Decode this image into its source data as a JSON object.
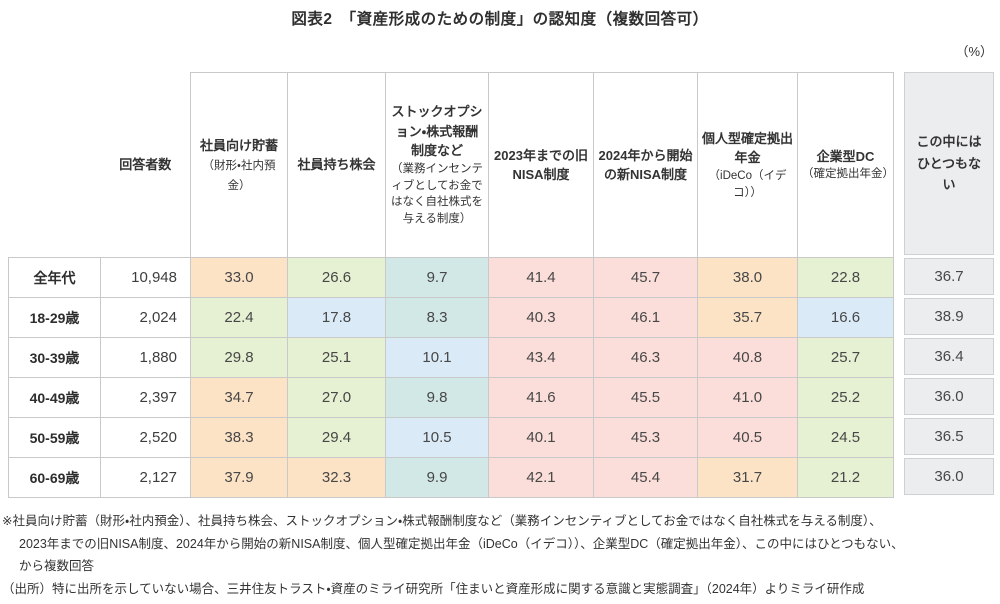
{
  "title": "図表2　「資産形成のための制度」の認知度（複数回答可）",
  "unit_label": "（%）",
  "table": {
    "respondents_header": "回答者数",
    "columns": [
      {
        "label": "社員向け貯蓄",
        "note": "（財形・社内預金）",
        "note_inline": true
      },
      {
        "label": "社員持ち株会",
        "note": ""
      },
      {
        "label": "ストックオプション・株式報酬制度など",
        "note": "（業務インセンティブとしてお金ではなく自社株式を与える制度）",
        "note_inline": false
      },
      {
        "label": "2023年までの旧NISA制度",
        "note": ""
      },
      {
        "label": "2024年から開始の新NISA制度",
        "note": ""
      },
      {
        "label": "個人型確定拠出年金",
        "note": "（iDeCo（イデコ））",
        "note_inline": false
      },
      {
        "label": "企業型DC",
        "note": "（確定拠出年金）",
        "note_inline": false
      }
    ],
    "none_column_header": "この中にはひとつもない",
    "rows": [
      {
        "label": "全年代",
        "respondents": "10,948",
        "values": [
          33.0,
          26.6,
          9.7,
          41.4,
          45.7,
          38.0,
          22.8
        ],
        "none": 36.7
      },
      {
        "label": "18-29歳",
        "respondents": "2,024",
        "values": [
          22.4,
          17.8,
          8.3,
          40.3,
          46.1,
          35.7,
          16.6
        ],
        "none": 38.9
      },
      {
        "label": "30-39歳",
        "respondents": "1,880",
        "values": [
          29.8,
          25.1,
          10.1,
          43.4,
          46.3,
          40.8,
          25.7
        ],
        "none": 36.4
      },
      {
        "label": "40-49歳",
        "respondents": "2,397",
        "values": [
          34.7,
          27.0,
          9.8,
          41.6,
          45.5,
          41.0,
          25.2
        ],
        "none": 36.0
      },
      {
        "label": "50-59歳",
        "respondents": "2,520",
        "values": [
          38.3,
          29.4,
          10.5,
          40.1,
          45.3,
          40.5,
          24.5
        ],
        "none": 36.5
      },
      {
        "label": "60-69歳",
        "respondents": "2,127",
        "values": [
          37.9,
          32.3,
          9.9,
          42.1,
          45.4,
          31.7,
          21.2
        ],
        "none": 36.0
      }
    ]
  },
  "heatmap": {
    "bins": [
      {
        "max": 10,
        "color": "#d2e8e6"
      },
      {
        "max": 20,
        "color": "#daeaf7"
      },
      {
        "max": 30,
        "color": "#e6f0d2"
      },
      {
        "max": 40,
        "color": "#fce3c6"
      },
      {
        "max": 100,
        "color": "#fbdeda"
      }
    ],
    "none_color": "#ecedef",
    "border_color": "#c9c9c9"
  },
  "notes": [
    "※社員向け貯蓄（財形・社内預金）、社員持ち株会、ストックオプション・株式報酬制度など（業務インセンティブとしてお金ではなく自社株式を与える制度）、",
    "2023年までの旧NISA制度、2024年から開始の新NISA制度、個人型確定拠出年金（iDeCo（イデコ））、企業型DC（確定拠出年金）、この中にはひとつもない、",
    "から複数回答",
    "（出所）特に出所を示していない場合、三井住友トラスト・資産のミライ研究所「住まいと資産形成に関する意識と実態調査」（2024年）よりミライ研作成"
  ],
  "chart_data": {
    "type": "table",
    "title": "図表2　「資産形成のための制度」の認知度（複数回答可）",
    "unit": "%",
    "columns": [
      "回答者数",
      "社員向け貯蓄（財形・社内預金）",
      "社員持ち株会",
      "ストックオプション・株式報酬制度など（業務インセンティブとしてお金ではなく自社株式を与える制度）",
      "2023年までの旧NISA制度",
      "2024年から開始の新NISA制度",
      "個人型確定拠出年金（iDeCo（イデコ））",
      "企業型DC（確定拠出年金）",
      "この中にはひとつもない"
    ],
    "rows": [
      {
        "category": "全年代",
        "respondents": 10948,
        "values": [
          33.0,
          26.6,
          9.7,
          41.4,
          45.7,
          38.0,
          22.8,
          36.7
        ]
      },
      {
        "category": "18-29歳",
        "respondents": 2024,
        "values": [
          22.4,
          17.8,
          8.3,
          40.3,
          46.1,
          35.7,
          16.6,
          38.9
        ]
      },
      {
        "category": "30-39歳",
        "respondents": 1880,
        "values": [
          29.8,
          25.1,
          10.1,
          43.4,
          46.3,
          40.8,
          25.7,
          36.4
        ]
      },
      {
        "category": "40-49歳",
        "respondents": 2397,
        "values": [
          34.7,
          27.0,
          9.8,
          41.6,
          45.5,
          41.0,
          25.2,
          36.0
        ]
      },
      {
        "category": "50-59歳",
        "respondents": 2520,
        "values": [
          38.3,
          29.4,
          10.5,
          40.1,
          45.3,
          40.5,
          24.5,
          36.5
        ]
      },
      {
        "category": "60-69歳",
        "respondents": 2127,
        "values": [
          37.9,
          32.3,
          9.9,
          42.1,
          45.4,
          31.7,
          21.2,
          36.0
        ]
      }
    ],
    "legend_hint": "cell fill encodes value bin: <10 teal, 10-19 blue, 20-29 green, 30-39 orange, >=40 pink; last column gray"
  }
}
